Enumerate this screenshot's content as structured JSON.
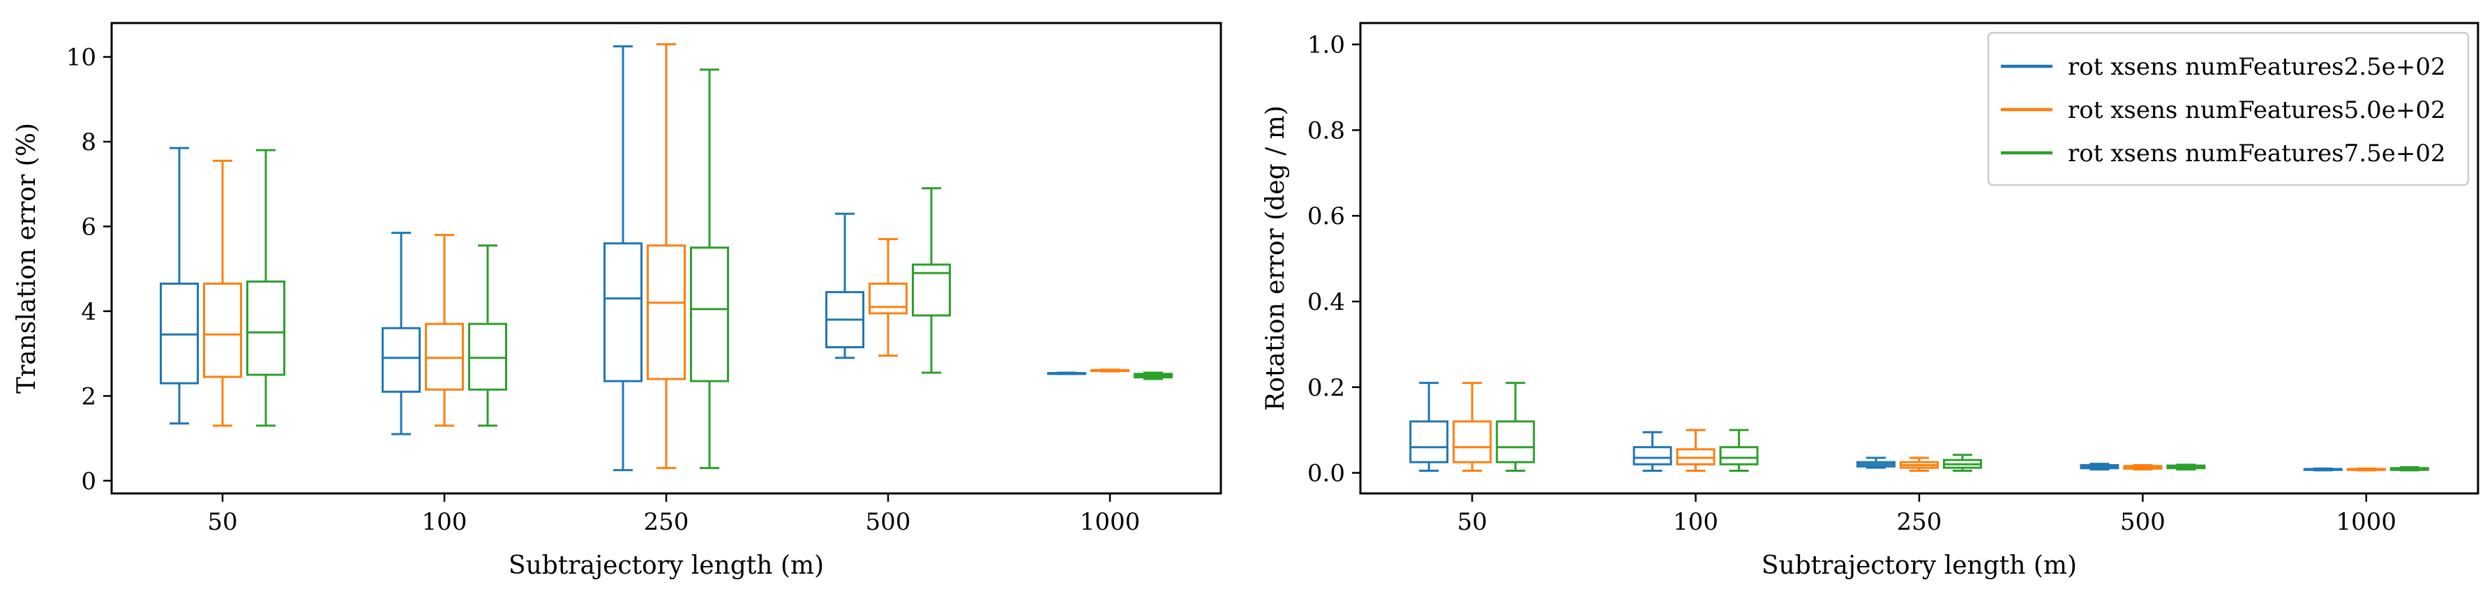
{
  "figure": {
    "background": "#ffffff",
    "series_colors": [
      "#1f77b4",
      "#ff7f0e",
      "#2ca02c"
    ]
  },
  "chart_data": [
    {
      "type": "box",
      "title": "",
      "xlabel": "Subtrajectory length (m)",
      "ylabel": "Translation error (%)",
      "ylim": [
        -0.3,
        10.8
      ],
      "yticks": [
        0,
        2,
        4,
        6,
        8,
        10
      ],
      "categories": [
        "50",
        "100",
        "250",
        "500",
        "1000"
      ],
      "grid": false,
      "legend": null,
      "series": [
        {
          "color": "#1f77b4",
          "boxes": [
            {
              "whislo": 1.35,
              "q1": 2.3,
              "med": 3.45,
              "q3": 4.65,
              "whishi": 7.85
            },
            {
              "whislo": 1.1,
              "q1": 2.1,
              "med": 2.9,
              "q3": 3.6,
              "whishi": 5.85
            },
            {
              "whislo": 0.25,
              "q1": 2.35,
              "med": 4.3,
              "q3": 5.6,
              "whishi": 10.25
            },
            {
              "whislo": 2.9,
              "q1": 3.15,
              "med": 3.8,
              "q3": 4.45,
              "whishi": 6.3
            },
            {
              "whislo": 2.52,
              "q1": 2.52,
              "med": 2.53,
              "q3": 2.54,
              "whishi": 2.55
            }
          ]
        },
        {
          "color": "#ff7f0e",
          "boxes": [
            {
              "whislo": 1.3,
              "q1": 2.45,
              "med": 3.45,
              "q3": 4.65,
              "whishi": 7.55
            },
            {
              "whislo": 1.3,
              "q1": 2.15,
              "med": 2.9,
              "q3": 3.7,
              "whishi": 5.8
            },
            {
              "whislo": 0.3,
              "q1": 2.4,
              "med": 4.2,
              "q3": 5.55,
              "whishi": 10.3
            },
            {
              "whislo": 2.95,
              "q1": 3.95,
              "med": 4.1,
              "q3": 4.65,
              "whishi": 5.7
            },
            {
              "whislo": 2.58,
              "q1": 2.59,
              "med": 2.6,
              "q3": 2.61,
              "whishi": 2.62
            }
          ]
        },
        {
          "color": "#2ca02c",
          "boxes": [
            {
              "whislo": 1.3,
              "q1": 2.5,
              "med": 3.5,
              "q3": 4.7,
              "whishi": 7.8
            },
            {
              "whislo": 1.3,
              "q1": 2.15,
              "med": 2.9,
              "q3": 3.7,
              "whishi": 5.55
            },
            {
              "whislo": 0.3,
              "q1": 2.35,
              "med": 4.05,
              "q3": 5.5,
              "whishi": 9.7
            },
            {
              "whislo": 2.55,
              "q1": 3.9,
              "med": 4.9,
              "q3": 5.1,
              "whishi": 6.9
            },
            {
              "whislo": 2.4,
              "q1": 2.44,
              "med": 2.48,
              "q3": 2.52,
              "whishi": 2.55
            }
          ]
        }
      ]
    },
    {
      "type": "box",
      "title": "",
      "xlabel": "Subtrajectory length (m)",
      "ylabel": "Rotation error (deg / m)",
      "ylim": [
        -0.048,
        1.05
      ],
      "yticks": [
        0.0,
        0.2,
        0.4,
        0.6,
        0.8,
        1.0
      ],
      "ytick_labels": [
        "0.0",
        "0.2",
        "0.4",
        "0.6",
        "0.8",
        "1.0"
      ],
      "categories": [
        "50",
        "100",
        "250",
        "500",
        "1000"
      ],
      "grid": false,
      "legend": "top-right",
      "series": [
        {
          "name": "rot xsens numFeatures2.5e+02",
          "color": "#1f77b4",
          "boxes": [
            {
              "whislo": 0.005,
              "q1": 0.025,
              "med": 0.06,
              "q3": 0.12,
              "whishi": 0.21
            },
            {
              "whislo": 0.005,
              "q1": 0.02,
              "med": 0.035,
              "q3": 0.06,
              "whishi": 0.095
            },
            {
              "whislo": 0.012,
              "q1": 0.015,
              "med": 0.02,
              "q3": 0.025,
              "whishi": 0.035
            },
            {
              "whislo": 0.008,
              "q1": 0.011,
              "med": 0.014,
              "q3": 0.018,
              "whishi": 0.021
            },
            {
              "whislo": 0.006,
              "q1": 0.007,
              "med": 0.008,
              "q3": 0.009,
              "whishi": 0.01
            }
          ]
        },
        {
          "name": "rot xsens numFeatures5.0e+02",
          "color": "#ff7f0e",
          "boxes": [
            {
              "whislo": 0.005,
              "q1": 0.025,
              "med": 0.06,
              "q3": 0.12,
              "whishi": 0.21
            },
            {
              "whislo": 0.005,
              "q1": 0.02,
              "med": 0.035,
              "q3": 0.055,
              "whishi": 0.1
            },
            {
              "whislo": 0.005,
              "q1": 0.012,
              "med": 0.018,
              "q3": 0.025,
              "whishi": 0.035
            },
            {
              "whislo": 0.008,
              "q1": 0.01,
              "med": 0.013,
              "q3": 0.016,
              "whishi": 0.018
            },
            {
              "whislo": 0.006,
              "q1": 0.007,
              "med": 0.008,
              "q3": 0.009,
              "whishi": 0.01
            }
          ]
        },
        {
          "name": "rot xsens numFeatures7.5e+02",
          "color": "#2ca02c",
          "boxes": [
            {
              "whislo": 0.005,
              "q1": 0.025,
              "med": 0.06,
              "q3": 0.12,
              "whishi": 0.21
            },
            {
              "whislo": 0.005,
              "q1": 0.02,
              "med": 0.035,
              "q3": 0.06,
              "whishi": 0.1
            },
            {
              "whislo": 0.005,
              "q1": 0.012,
              "med": 0.02,
              "q3": 0.03,
              "whishi": 0.042
            },
            {
              "whislo": 0.008,
              "q1": 0.011,
              "med": 0.014,
              "q3": 0.017,
              "whishi": 0.019
            },
            {
              "whislo": 0.006,
              "q1": 0.007,
              "med": 0.009,
              "q3": 0.011,
              "whishi": 0.013
            }
          ]
        }
      ]
    }
  ]
}
